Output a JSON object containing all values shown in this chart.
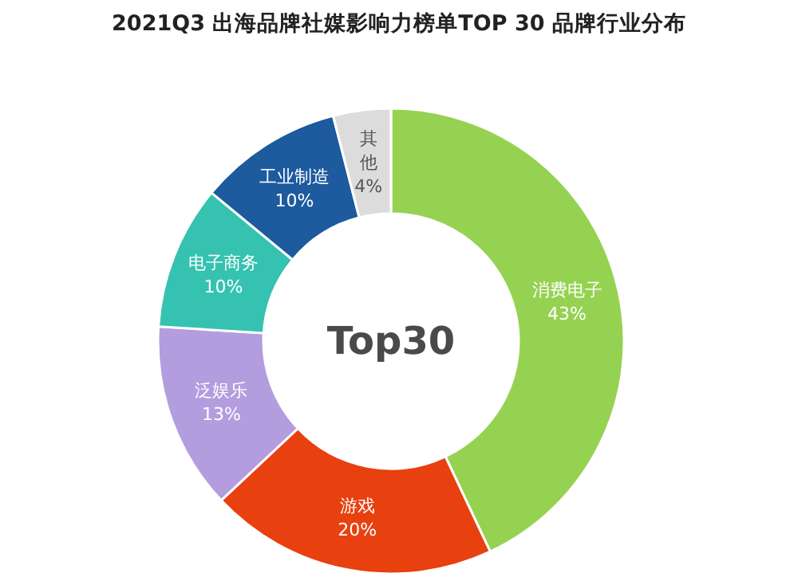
{
  "chart_data": {
    "type": "donut",
    "title": "2021Q3 出海品牌社媒影响力榜单TOP 30 品牌行业分布",
    "categories": [
      "消费电子",
      "游戏",
      "泛娱乐",
      "电子商务",
      "工业制造",
      "其他"
    ],
    "values": [
      43,
      20,
      13,
      10,
      10,
      4
    ],
    "colors": [
      "#96d252",
      "#e8400f",
      "#b39ddf",
      "#35c2b0",
      "#1d5a9e",
      "#dcdcdc"
    ],
    "value_labels": [
      "43%",
      "20%",
      "13%",
      "10%",
      "10%",
      "4%"
    ],
    "annotations": [
      "Top30"
    ],
    "legend": false
  }
}
